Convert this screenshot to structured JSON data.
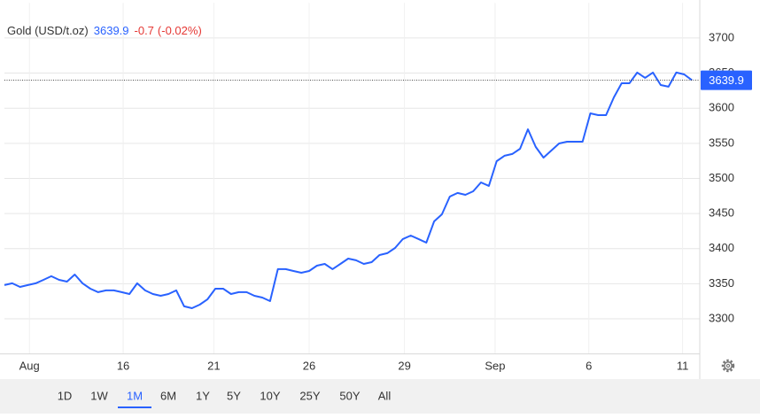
{
  "chart_data": {
    "type": "line",
    "title": "Gold (USD/t.oz)",
    "price": 3639.9,
    "change": -0.7,
    "change_pct": "(-0.02%)",
    "color": "#2962ff",
    "x": [
      0,
      0.25,
      0.5,
      0.75,
      1,
      1.25,
      1.5,
      1.75,
      2,
      2.25,
      2.5,
      2.75,
      3,
      3.25,
      3.5,
      3.75,
      4,
      4.25,
      4.5,
      4.75,
      5,
      5.25,
      5.5,
      5.75,
      6,
      6.25,
      6.5,
      6.75,
      7,
      7.25,
      7.5,
      7.75,
      8,
      8.25,
      8.5,
      8.75,
      9,
      9.25,
      9.5,
      9.75,
      10,
      10.25,
      10.5,
      10.75,
      11,
      11.25,
      11.5,
      11.75,
      12,
      12.25,
      12.5,
      12.75,
      13,
      13.25,
      13.5,
      13.75,
      14,
      14.25,
      14.5,
      14.75,
      15,
      15.25,
      15.5,
      15.75,
      16,
      16.25,
      16.5,
      16.75,
      17,
      17.25,
      17.5,
      17.75,
      18,
      18.25,
      18.5,
      18.75,
      19,
      19.25,
      19.5,
      19.75,
      20,
      20.25,
      20.5,
      20.75,
      21,
      21.25,
      21.5,
      21.75,
      22
    ],
    "values": [
      3348,
      3350.5,
      3345.4,
      3348,
      3350.5,
      3355.5,
      3360.6,
      3355.5,
      3353,
      3363.1,
      3350.5,
      3342.9,
      3337.9,
      3340.4,
      3340.4,
      3337.9,
      3335.3,
      3350.5,
      3340.4,
      3335.3,
      3332.8,
      3335.3,
      3340.4,
      3317.7,
      3315.1,
      3320.2,
      3327.8,
      3342.9,
      3342.9,
      3335.3,
      3337.9,
      3337.9,
      3332.8,
      3330.3,
      3325.2,
      3370.7,
      3370.7,
      3368.1,
      3365.6,
      3368.1,
      3375.7,
      3378.2,
      3370.7,
      3378.2,
      3385.8,
      3383.3,
      3378.2,
      3380.7,
      3390.8,
      3393.4,
      3400.9,
      3413.6,
      3418.6,
      3413.6,
      3408.5,
      3438.8,
      3448.9,
      3474.1,
      3479.2,
      3476.6,
      3481.7,
      3494.3,
      3489.3,
      3524.6,
      3532.2,
      3534.7,
      3542.2,
      3570,
      3544.8,
      3529.6,
      3539.7,
      3549.8,
      3552.3,
      3552.3,
      3552.3,
      3592.7,
      3590.2,
      3590.2,
      3615.4,
      3635.6,
      3635.6,
      3650.8,
      3643.2,
      3650.8,
      3633.1,
      3630.6,
      3650.8,
      3648.2,
      3639.9
    ],
    "xlim": [
      0,
      22.25
    ],
    "xticks": [
      {
        "value": 0.8,
        "label": "Aug"
      },
      {
        "value": 3.8,
        "label": "16"
      },
      {
        "value": 6.7,
        "label": "21"
      },
      {
        "value": 9.75,
        "label": "26"
      },
      {
        "value": 12.8,
        "label": "29"
      },
      {
        "value": 15.7,
        "label": "Sep"
      },
      {
        "value": 18.7,
        "label": "6"
      },
      {
        "value": 21.7,
        "label": "11"
      }
    ],
    "ylim": [
      3250,
      3750
    ],
    "yticks": [
      3300,
      3350,
      3400,
      3450,
      3500,
      3550,
      3600,
      3650,
      3700
    ],
    "grid": true,
    "ranges": [
      "1D",
      "1W",
      "1M",
      "6M",
      "1Y",
      "5Y",
      "10Y",
      "25Y",
      "50Y",
      "All"
    ],
    "selected_range": 2
  }
}
